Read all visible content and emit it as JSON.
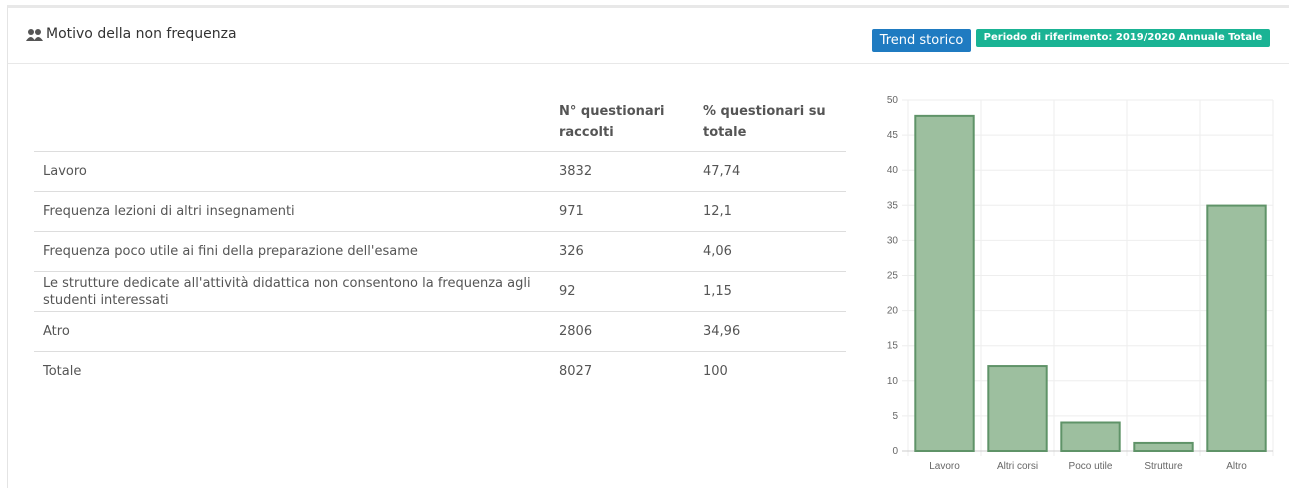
{
  "header": {
    "title": "Motivo della non frequenza",
    "button": "Trend storico",
    "badge": "Periodo di riferimento: 2019/2020 Annuale Totale"
  },
  "table": {
    "header": [
      "",
      "N° questionari raccolti",
      "% questionari su totale"
    ],
    "rows": [
      [
        "Lavoro",
        "3832",
        "47,74"
      ],
      [
        "Frequenza lezioni di altri insegnamenti",
        "971",
        "12,1"
      ],
      [
        "Frequenza poco utile ai fini della preparazione dell'esame",
        "326",
        "4,06"
      ],
      [
        "Le strutture dedicate all'attività didattica non consentono la frequenza agli studenti interessati",
        "92",
        "1,15"
      ],
      [
        "Atro",
        "2806",
        "34,96"
      ],
      [
        "Totale",
        "8027",
        "100"
      ]
    ]
  },
  "chart_data": {
    "type": "bar",
    "categories": [
      "Lavoro",
      "Altri corsi",
      "Poco utile",
      "Strutture",
      "Altro"
    ],
    "values": [
      47.74,
      12.1,
      4.06,
      1.15,
      34.96
    ],
    "color": "#9dbf9f",
    "border_color": "#5f9368",
    "ylim": [
      0,
      50
    ],
    "yticks": [
      0,
      5,
      10,
      15,
      20,
      25,
      30,
      35,
      40,
      45,
      50
    ],
    "grid": true
  }
}
